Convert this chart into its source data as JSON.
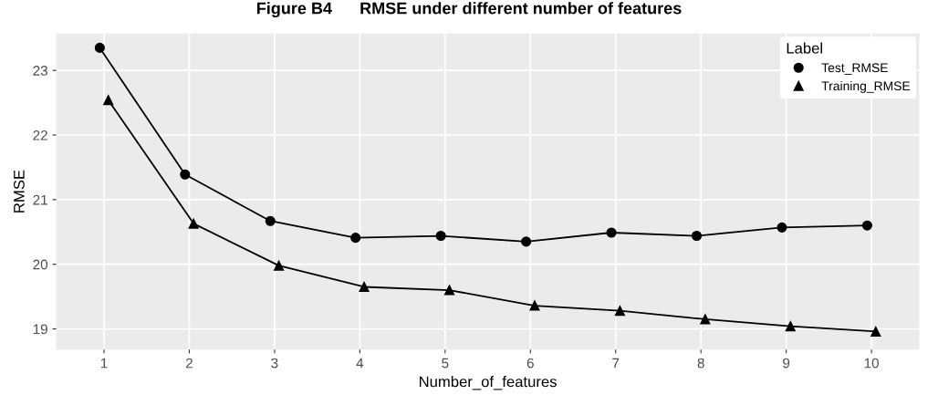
{
  "chart_data": {
    "type": "line",
    "title": "Figure B4      RMSE under different number of features",
    "xlabel": "Number_of_features",
    "ylabel": "RMSE",
    "legend_title": "Label",
    "series": [
      {
        "name": "Test_RMSE",
        "color": "#000000",
        "marker": "circle",
        "x": [
          0.95,
          1.95,
          2.95,
          3.95,
          4.95,
          5.95,
          6.95,
          7.95,
          8.95,
          9.95
        ],
        "values": [
          23.35,
          21.39,
          20.67,
          20.41,
          20.44,
          20.35,
          20.49,
          20.44,
          20.57,
          20.6
        ]
      },
      {
        "name": "Training_RMSE",
        "color": "#000000",
        "marker": "triangle",
        "x": [
          1.05,
          2.05,
          3.05,
          4.05,
          5.05,
          6.05,
          7.05,
          8.05,
          9.05,
          10.05
        ],
        "values": [
          22.54,
          20.63,
          19.98,
          19.65,
          19.6,
          19.36,
          19.28,
          19.15,
          19.04,
          18.96
        ]
      }
    ],
    "xlim": [
      0.44,
      10.56
    ],
    "xticks": [
      1,
      2,
      3,
      4,
      5,
      6,
      7,
      8,
      9,
      10
    ],
    "ylim": [
      18.68,
      23.57
    ],
    "yticks": [
      19,
      20,
      21,
      22,
      23
    ],
    "grid": true,
    "legend": "top right",
    "line_style": "solid"
  }
}
